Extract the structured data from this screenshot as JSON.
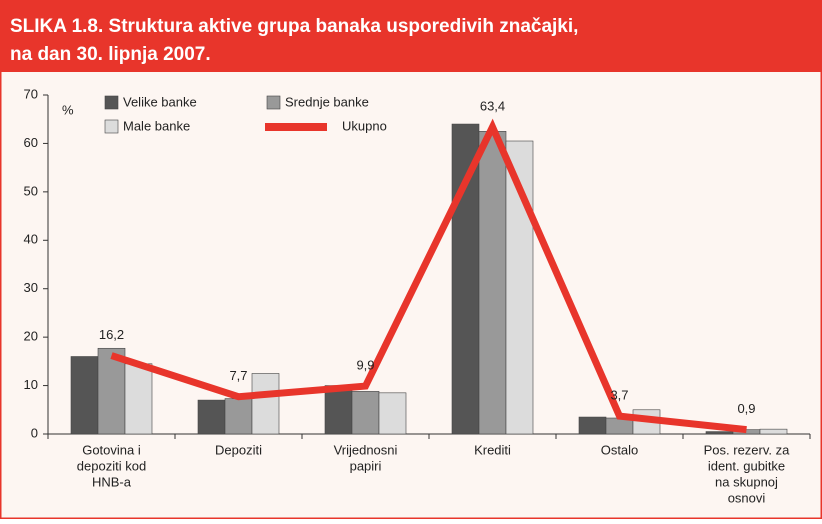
{
  "chart_data": {
    "type": "bar+line",
    "title": [
      "SLIKA 1.8. Struktura aktive grupa banaka usporedivih značajki,",
      "na dan 30. lipnja 2007."
    ],
    "y_label": "%",
    "categories": [
      [
        "Gotovina i",
        "depoziti kod",
        "HNB-a"
      ],
      [
        "Depoziti"
      ],
      [
        "Vrijednosni",
        "papiri"
      ],
      [
        "Krediti"
      ],
      [
        "Ostalo"
      ],
      [
        "Pos. rezerv. za",
        "ident. gubitke",
        "na skupnoj",
        "osnovi"
      ]
    ],
    "series": [
      {
        "name": "Velike banke",
        "color": "#555555",
        "values": [
          16,
          7,
          10,
          64,
          3.5,
          0.5
        ]
      },
      {
        "name": "Srednje banke",
        "color": "#999999",
        "values": [
          17.7,
          7.3,
          8.8,
          62.5,
          3.3,
          0.9
        ]
      },
      {
        "name": "Male banke",
        "color": "#dcdcdc",
        "values": [
          14.5,
          12.5,
          8.5,
          60.5,
          5,
          1
        ]
      },
      {
        "name": "Ukupno",
        "color": "#e8352b",
        "type": "line",
        "values": [
          16.2,
          7.7,
          9.9,
          63.4,
          3.7,
          0.9
        ],
        "value_labels": [
          "16,2",
          "7,7",
          "9,9",
          "63,4",
          "3,7",
          "0,9"
        ]
      }
    ],
    "ylim": [
      0,
      70
    ],
    "yticks": [
      0,
      10,
      20,
      30,
      40,
      50,
      60,
      70
    ]
  }
}
